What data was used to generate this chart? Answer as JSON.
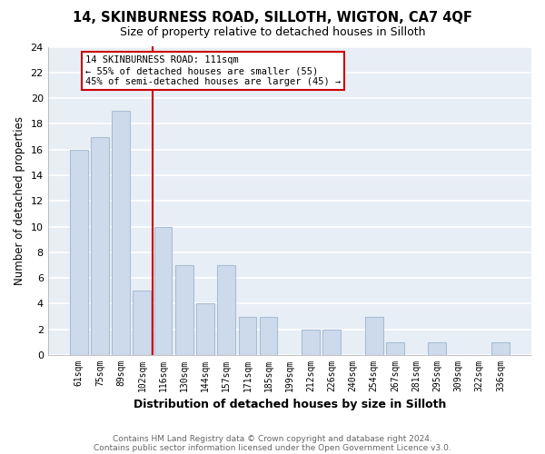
{
  "title": "14, SKINBURNESS ROAD, SILLOTH, WIGTON, CA7 4QF",
  "subtitle": "Size of property relative to detached houses in Silloth",
  "xlabel": "Distribution of detached houses by size in Silloth",
  "ylabel": "Number of detached properties",
  "bar_color": "#ccdaeb",
  "bar_edge_color": "#aabdd4",
  "categories": [
    "61sqm",
    "75sqm",
    "89sqm",
    "102sqm",
    "116sqm",
    "130sqm",
    "144sqm",
    "157sqm",
    "171sqm",
    "185sqm",
    "199sqm",
    "212sqm",
    "226sqm",
    "240sqm",
    "254sqm",
    "267sqm",
    "281sqm",
    "295sqm",
    "309sqm",
    "322sqm",
    "336sqm"
  ],
  "values": [
    16,
    17,
    19,
    5,
    10,
    7,
    4,
    7,
    3,
    3,
    0,
    2,
    2,
    0,
    3,
    1,
    0,
    1,
    0,
    0,
    1
  ],
  "ylim": [
    0,
    24
  ],
  "yticks": [
    0,
    2,
    4,
    6,
    8,
    10,
    12,
    14,
    16,
    18,
    20,
    22,
    24
  ],
  "vline_color": "#cc0000",
  "annotation_line1": "14 SKINBURNESS ROAD: 111sqm",
  "annotation_line2": "← 55% of detached houses are smaller (55)",
  "annotation_line3": "45% of semi-detached houses are larger (45) →",
  "footer_line1": "Contains HM Land Registry data © Crown copyright and database right 2024.",
  "footer_line2": "Contains public sector information licensed under the Open Government Licence v3.0.",
  "fig_bg_color": "#ffffff",
  "plot_bg_color": "#e8eef5",
  "grid_color": "#ffffff"
}
